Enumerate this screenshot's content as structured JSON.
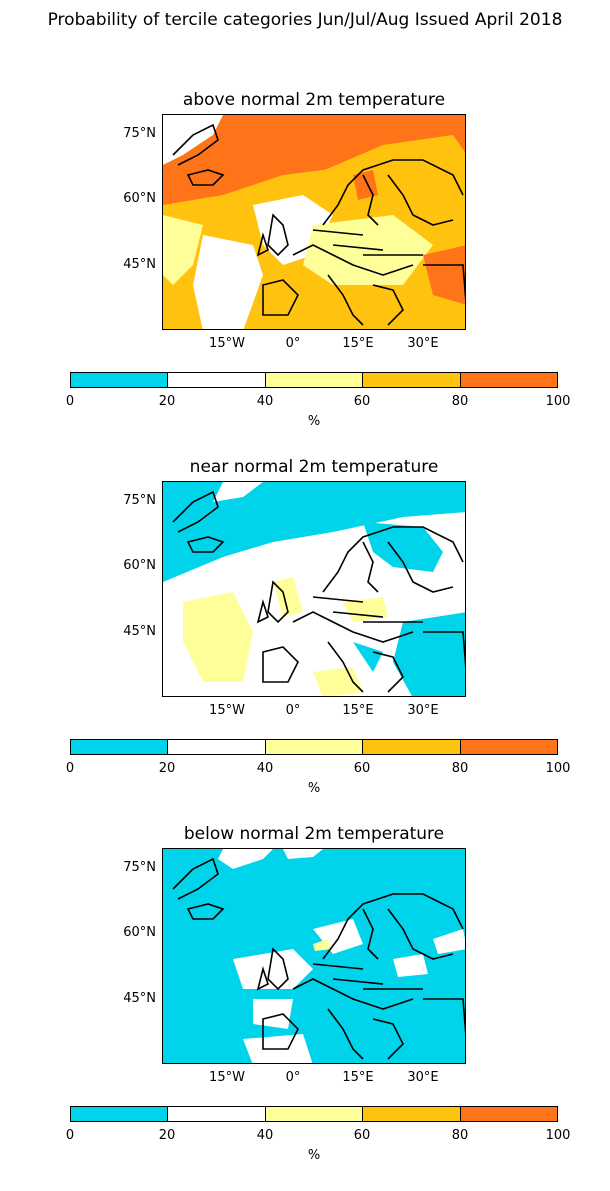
{
  "suptitle": "Probability of tercile categories Jun/Jul/Aug Issued April 2018",
  "colorbar": {
    "ticks": [
      "0",
      "20",
      "40",
      "60",
      "80",
      "100"
    ],
    "label": "%",
    "colors": [
      "#00d4ea",
      "#ffffff",
      "#ffff99",
      "#ffc20e",
      "#ff7418"
    ]
  },
  "axes": {
    "yticks": [
      "75°N",
      "60°N",
      "45°N"
    ],
    "xticks": [
      "15°W",
      "0°",
      "15°E",
      "30°E"
    ]
  },
  "panels": [
    {
      "title": "above normal 2m temperature",
      "dominant_category": "40-80"
    },
    {
      "title": "near normal 2m temperature",
      "dominant_category": "0-40"
    },
    {
      "title": "below normal 2m temperature",
      "dominant_category": "0-20"
    }
  ]
}
